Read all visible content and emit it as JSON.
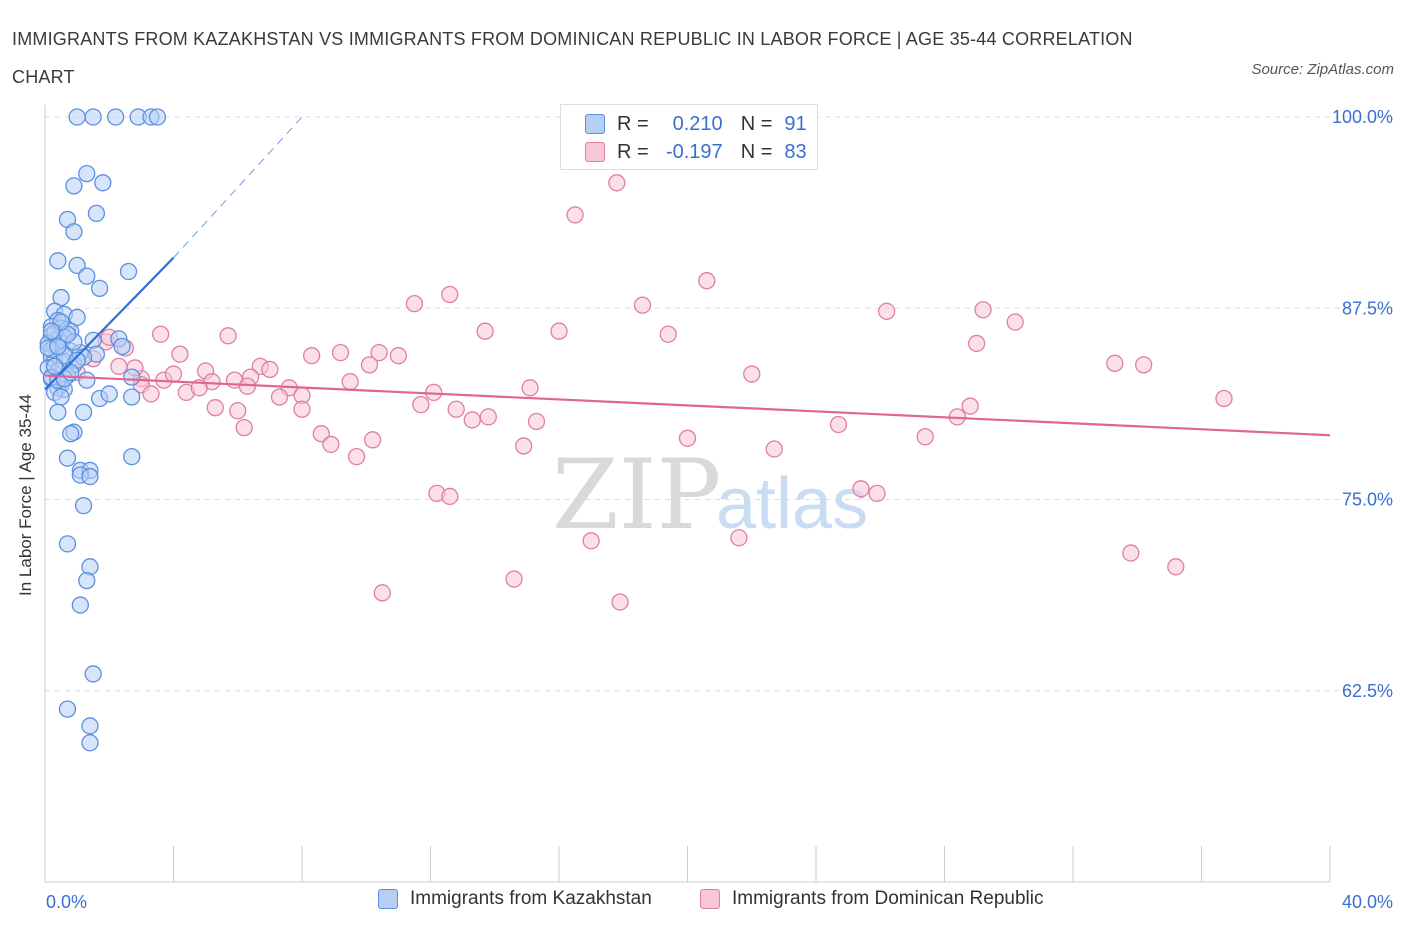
{
  "title": "IMMIGRANTS FROM KAZAKHSTAN VS IMMIGRANTS FROM DOMINICAN REPUBLIC IN LABOR FORCE | AGE 35-44 CORRELATION CHART",
  "source": "Source: ZipAtlas.com",
  "legend": {
    "r_label": "R =",
    "n_label": "N =",
    "rows": [
      {
        "r": "0.210",
        "n": "91"
      },
      {
        "r": "-0.197",
        "n": "83"
      }
    ]
  },
  "watermark": {
    "zip": "ZIP",
    "atlas": "atlas"
  },
  "bottom_legend": [
    "Immigrants from Kazakhstan",
    "Immigrants from Dominican Republic"
  ],
  "colors": {
    "kazakhstan_fill": "#b7cff5",
    "kazakhstan_stroke": "#5b8fe0",
    "kazakhstan_line": "#2f6fd6",
    "dominican_fill": "#f8c6d6",
    "dominican_stroke": "#e07f9e",
    "dominican_line": "#e0668f",
    "axis_text": "#3a6fd1",
    "grid": "#dddddd"
  },
  "chart_data": {
    "type": "scatter",
    "title": "IMMIGRANTS FROM KAZAKHSTAN VS IMMIGRANTS FROM DOMINICAN REPUBLIC IN LABOR FORCE | AGE 35-44 CORRELATION CHART",
    "xlabel": "",
    "ylabel": "In Labor Force | Age 35-44",
    "xlim": [
      0,
      40
    ],
    "ylim": [
      50,
      100
    ],
    "x_tick_labels": [
      "0.0%",
      "40.0%"
    ],
    "y_tick_labels": [
      "100.0%",
      "87.5%",
      "75.0%",
      "62.5%"
    ],
    "y_ticks": [
      100,
      87.5,
      75,
      62.5
    ],
    "grid": true,
    "legend_position": "top-center",
    "series": [
      {
        "name": "Immigrants from Kazakhstan",
        "r": 0.21,
        "n": 91,
        "trend": {
          "x0": 0.0,
          "y0": 82.2,
          "x1": 4.0,
          "y1": 90.8,
          "dash_to_x": 8.0,
          "dash_to_y": 100.0
        },
        "points": [
          [
            1.0,
            100
          ],
          [
            1.5,
            100
          ],
          [
            2.2,
            100
          ],
          [
            2.9,
            100
          ],
          [
            3.3,
            100
          ],
          [
            3.5,
            100
          ],
          [
            1.3,
            96.3
          ],
          [
            0.9,
            95.5
          ],
          [
            1.8,
            95.7
          ],
          [
            0.7,
            93.3
          ],
          [
            1.6,
            93.7
          ],
          [
            0.9,
            92.5
          ],
          [
            0.4,
            90.6
          ],
          [
            1.0,
            90.3
          ],
          [
            1.3,
            89.6
          ],
          [
            2.6,
            89.9
          ],
          [
            1.7,
            88.8
          ],
          [
            0.5,
            88.2
          ],
          [
            0.3,
            87.3
          ],
          [
            0.6,
            87.1
          ],
          [
            1.0,
            86.9
          ],
          [
            0.4,
            86.7
          ],
          [
            0.2,
            86.3
          ],
          [
            0.5,
            86.2
          ],
          [
            0.7,
            86.1
          ],
          [
            0.8,
            86.0
          ],
          [
            0.2,
            85.7
          ],
          [
            0.4,
            85.5
          ],
          [
            0.6,
            85.6
          ],
          [
            1.5,
            85.4
          ],
          [
            2.3,
            85.5
          ],
          [
            0.1,
            85.2
          ],
          [
            0.3,
            85.0
          ],
          [
            0.5,
            84.9
          ],
          [
            0.8,
            84.7
          ],
          [
            1.1,
            84.6
          ],
          [
            2.4,
            85.0
          ],
          [
            1.6,
            84.5
          ],
          [
            0.2,
            84.3
          ],
          [
            0.3,
            84.1
          ],
          [
            0.6,
            84.0
          ],
          [
            0.9,
            83.8
          ],
          [
            1.2,
            84.3
          ],
          [
            0.1,
            83.6
          ],
          [
            0.4,
            83.4
          ],
          [
            0.7,
            83.1
          ],
          [
            1.3,
            82.8
          ],
          [
            2.7,
            83.0
          ],
          [
            0.2,
            82.9
          ],
          [
            0.5,
            82.5
          ],
          [
            0.4,
            82.3
          ],
          [
            0.6,
            82.2
          ],
          [
            0.3,
            82.0
          ],
          [
            0.5,
            81.7
          ],
          [
            1.7,
            81.6
          ],
          [
            2.0,
            81.9
          ],
          [
            2.7,
            81.7
          ],
          [
            0.4,
            80.7
          ],
          [
            1.2,
            80.7
          ],
          [
            0.9,
            79.4
          ],
          [
            0.8,
            79.3
          ],
          [
            0.7,
            77.7
          ],
          [
            2.7,
            77.8
          ],
          [
            1.1,
            76.9
          ],
          [
            1.4,
            76.9
          ],
          [
            1.1,
            76.6
          ],
          [
            1.4,
            76.5
          ],
          [
            1.2,
            74.6
          ],
          [
            0.7,
            72.1
          ],
          [
            1.4,
            70.6
          ],
          [
            1.3,
            69.7
          ],
          [
            1.1,
            68.1
          ],
          [
            1.5,
            63.6
          ],
          [
            0.7,
            61.3
          ],
          [
            1.4,
            60.2
          ],
          [
            1.4,
            59.1
          ],
          [
            0.2,
            84.8
          ],
          [
            0.3,
            85.9
          ],
          [
            0.6,
            84.4
          ],
          [
            0.9,
            85.3
          ],
          [
            0.2,
            83.0
          ],
          [
            0.4,
            82.8
          ],
          [
            0.7,
            85.8
          ],
          [
            0.5,
            86.6
          ],
          [
            0.1,
            84.9
          ],
          [
            0.3,
            83.7
          ],
          [
            0.6,
            82.9
          ],
          [
            1.0,
            84.1
          ],
          [
            0.2,
            86.0
          ],
          [
            0.8,
            83.3
          ],
          [
            0.4,
            85.0
          ]
        ]
      },
      {
        "name": "Immigrants from Dominican Republic",
        "r": -0.197,
        "n": 83,
        "trend": {
          "x0": 0.0,
          "y0": 83.1,
          "x1": 40.0,
          "y1": 79.2
        },
        "points": [
          [
            17.8,
            95.7
          ],
          [
            16.5,
            93.6
          ],
          [
            20.6,
            89.3
          ],
          [
            12.6,
            88.4
          ],
          [
            11.5,
            87.8
          ],
          [
            18.6,
            87.7
          ],
          [
            26.2,
            87.3
          ],
          [
            29.2,
            87.4
          ],
          [
            30.2,
            86.6
          ],
          [
            13.7,
            86.0
          ],
          [
            16.0,
            86.0
          ],
          [
            19.4,
            85.8
          ],
          [
            3.6,
            85.8
          ],
          [
            5.7,
            85.7
          ],
          [
            29.0,
            85.2
          ],
          [
            1.9,
            85.3
          ],
          [
            2.5,
            84.9
          ],
          [
            4.2,
            84.5
          ],
          [
            8.3,
            84.4
          ],
          [
            9.2,
            84.6
          ],
          [
            10.4,
            84.6
          ],
          [
            11.0,
            84.4
          ],
          [
            33.3,
            83.9
          ],
          [
            34.2,
            83.8
          ],
          [
            2.3,
            83.7
          ],
          [
            5.0,
            83.4
          ],
          [
            6.7,
            83.7
          ],
          [
            7.0,
            83.5
          ],
          [
            10.1,
            83.8
          ],
          [
            22.0,
            83.2
          ],
          [
            1.0,
            83.3
          ],
          [
            3.0,
            82.9
          ],
          [
            3.7,
            82.8
          ],
          [
            5.2,
            82.7
          ],
          [
            5.9,
            82.8
          ],
          [
            6.4,
            83.0
          ],
          [
            15.1,
            82.3
          ],
          [
            4.4,
            82.0
          ],
          [
            4.8,
            82.3
          ],
          [
            7.6,
            82.3
          ],
          [
            8.0,
            81.8
          ],
          [
            3.0,
            82.5
          ],
          [
            11.7,
            81.2
          ],
          [
            12.1,
            82.0
          ],
          [
            7.3,
            81.7
          ],
          [
            36.7,
            81.6
          ],
          [
            5.3,
            81.0
          ],
          [
            6.0,
            80.8
          ],
          [
            8.0,
            80.9
          ],
          [
            12.8,
            80.9
          ],
          [
            13.3,
            80.2
          ],
          [
            13.8,
            80.4
          ],
          [
            15.3,
            80.1
          ],
          [
            28.4,
            80.4
          ],
          [
            28.8,
            81.1
          ],
          [
            6.2,
            79.7
          ],
          [
            8.6,
            79.3
          ],
          [
            10.2,
            78.9
          ],
          [
            20.0,
            79.0
          ],
          [
            24.7,
            79.9
          ],
          [
            27.4,
            79.1
          ],
          [
            8.9,
            78.6
          ],
          [
            9.7,
            77.8
          ],
          [
            14.9,
            78.5
          ],
          [
            22.7,
            78.3
          ],
          [
            12.2,
            75.4
          ],
          [
            12.6,
            75.2
          ],
          [
            25.4,
            75.7
          ],
          [
            25.9,
            75.4
          ],
          [
            17.0,
            72.3
          ],
          [
            21.6,
            72.5
          ],
          [
            33.8,
            71.5
          ],
          [
            35.2,
            70.6
          ],
          [
            14.6,
            69.8
          ],
          [
            10.5,
            68.9
          ],
          [
            17.9,
            68.3
          ],
          [
            1.5,
            84.2
          ],
          [
            2.0,
            85.6
          ],
          [
            3.3,
            81.9
          ],
          [
            4.0,
            83.2
          ],
          [
            6.3,
            82.4
          ],
          [
            9.5,
            82.7
          ],
          [
            2.8,
            83.6
          ]
        ]
      }
    ]
  }
}
